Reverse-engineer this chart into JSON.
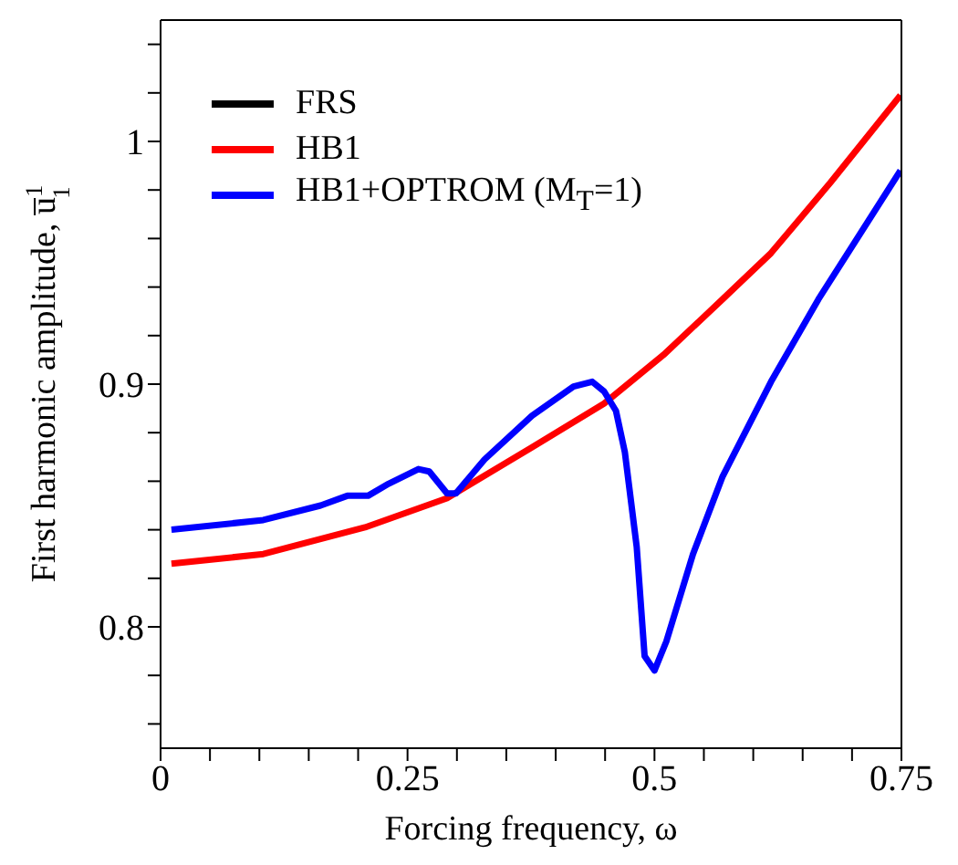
{
  "chart_data": {
    "type": "line",
    "xlabel": "Forcing frequency, ω",
    "ylabel": "First harmonic amplitude, u̅$^{1}$$_{1}$",
    "xlim": [
      0,
      0.75
    ],
    "xticks": [
      0,
      {
        "value": 0.05,
        "label": null
      },
      {
        "value": 0.1,
        "label": null
      },
      {
        "value": 0.15,
        "label": null
      },
      {
        "value": 0.2,
        "label": null
      },
      0.25,
      {
        "value": 0.3,
        "label": null
      },
      {
        "value": 0.35,
        "label": null
      },
      {
        "value": 0.4,
        "label": null
      },
      {
        "value": 0.45,
        "label": null
      },
      0.5,
      {
        "value": 0.55,
        "label": null
      },
      {
        "value": 0.6,
        "label": null
      },
      {
        "value": 0.65,
        "label": null
      },
      {
        "value": 0.7,
        "label": null
      },
      0.75
    ],
    "ylim": [
      0.75,
      1.05
    ],
    "yticks": [
      {
        "value": 0.76,
        "label": null
      },
      {
        "value": 0.78,
        "label": null
      },
      0.8,
      {
        "value": 0.82,
        "label": null
      },
      {
        "value": 0.84,
        "label": null
      },
      {
        "value": 0.86,
        "label": null
      },
      {
        "value": 0.88,
        "label": null
      },
      0.9,
      {
        "value": 0.92,
        "label": null
      },
      {
        "value": 0.94,
        "label": null
      },
      {
        "value": 0.96,
        "label": null
      },
      {
        "value": 0.98,
        "label": null
      },
      1,
      {
        "value": 1.02,
        "label": null
      },
      {
        "value": 1.04,
        "label": null
      }
    ],
    "grid": false,
    "legend": "top left",
    "marker": "none",
    "line_style": "solid",
    "series": [
      {
        "name": "FRS",
        "color": "#000000"
      },
      {
        "name": "HB1",
        "color": "#ff0000",
        "x": [
          0.011,
          0.104,
          0.207,
          0.29,
          0.376,
          0.449,
          0.509,
          0.569,
          0.618,
          0.678,
          0.749
        ],
        "values": [
          0.826,
          0.83,
          0.841,
          0.853,
          0.874,
          0.892,
          0.912,
          0.935,
          0.954,
          0.983,
          1.019
        ]
      },
      {
        "name": "HB1+OPTROM (M$_{T}$=1)",
        "color": "#0000ff",
        "x": [
          0.011,
          0.104,
          0.162,
          0.189,
          0.21,
          0.231,
          0.261,
          0.272,
          0.29,
          0.299,
          0.328,
          0.376,
          0.418,
          0.437,
          0.449,
          0.461,
          0.47,
          0.482,
          0.49,
          0.5,
          0.512,
          0.539,
          0.569,
          0.618,
          0.666,
          0.749
        ],
        "values": [
          0.84,
          0.844,
          0.85,
          0.854,
          0.854,
          0.859,
          0.865,
          0.864,
          0.855,
          0.855,
          0.869,
          0.887,
          0.899,
          0.901,
          0.897,
          0.889,
          0.872,
          0.833,
          0.788,
          0.782,
          0.794,
          0.83,
          0.862,
          0.901,
          0.935,
          0.988
        ]
      }
    ]
  }
}
